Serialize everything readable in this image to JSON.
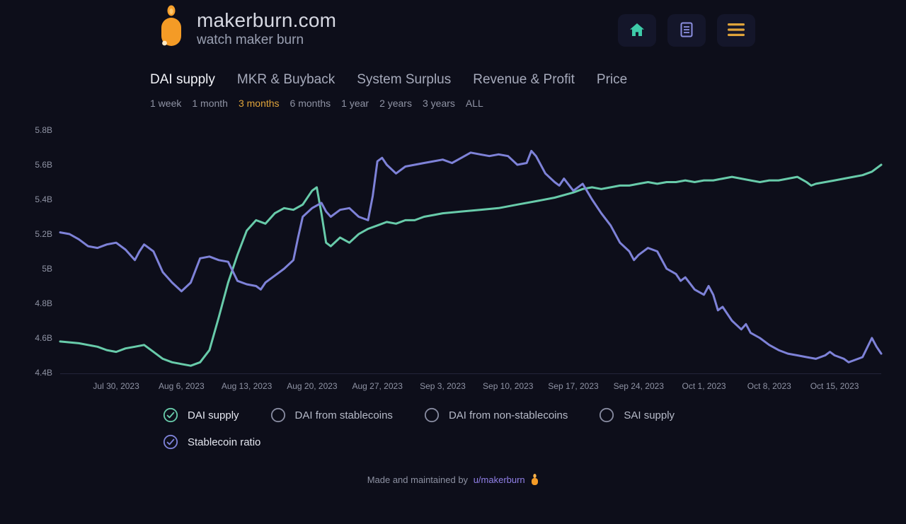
{
  "colors": {
    "background": "#0d0e1a",
    "brand_orange": "#f49b26",
    "accent_orange": "#e0a43a",
    "teal": "#68cbaa",
    "purple": "#7e82d8",
    "home_icon_teal": "#3ecba8",
    "doc_icon_purple": "#8b8fe0"
  },
  "header": {
    "title": "makerburn.com",
    "subtitle": "watch maker burn",
    "icons": [
      "home-icon",
      "document-icon",
      "hamburger-menu-icon"
    ]
  },
  "nav": {
    "tabs": [
      {
        "label": "DAI supply",
        "active": true
      },
      {
        "label": "MKR & Buyback",
        "active": false
      },
      {
        "label": "System Surplus",
        "active": false
      },
      {
        "label": "Revenue & Profit",
        "active": false
      },
      {
        "label": "Price",
        "active": false
      }
    ]
  },
  "timeframes": {
    "options": [
      {
        "label": "1 week",
        "active": false
      },
      {
        "label": "1 month",
        "active": false
      },
      {
        "label": "3 months",
        "active": true
      },
      {
        "label": "6 months",
        "active": false
      },
      {
        "label": "1 year",
        "active": false
      },
      {
        "label": "2 years",
        "active": false
      },
      {
        "label": "3 years",
        "active": false
      },
      {
        "label": "ALL",
        "active": false
      }
    ]
  },
  "chart_data": {
    "type": "line",
    "title": "",
    "y_unit": "B",
    "ylim": [
      4.4,
      5.8
    ],
    "y_ticks": [
      "5.8B",
      "5.6B",
      "5.4B",
      "5.2B",
      "5B",
      "4.8B",
      "4.6B",
      "4.4B"
    ],
    "y_tick_values": [
      5.8,
      5.6,
      5.4,
      5.2,
      5.0,
      4.8,
      4.6,
      4.4
    ],
    "x_ticks": [
      "Jul 30, 2023",
      "Aug 6, 2023",
      "Aug 13, 2023",
      "Aug 20, 2023",
      "Aug 27, 2023",
      "Sep 3, 2023",
      "Sep 10, 2023",
      "Sep 17, 2023",
      "Sep 24, 2023",
      "Oct 1, 2023",
      "Oct 8, 2023",
      "Oct 15, 2023"
    ],
    "x_tick_days": [
      6,
      13,
      20,
      27,
      34,
      41,
      48,
      55,
      62,
      69,
      76,
      83
    ],
    "x_range_days": [
      0,
      88
    ],
    "grid": false,
    "legend_position": "bottom",
    "legend": [
      "DAI supply",
      "Stablecoin ratio"
    ],
    "series": [
      {
        "name": "DAI supply",
        "color": "#68cbaa",
        "points": [
          [
            0,
            4.58
          ],
          [
            2,
            4.57
          ],
          [
            4,
            4.55
          ],
          [
            5,
            4.53
          ],
          [
            6,
            4.52
          ],
          [
            7,
            4.54
          ],
          [
            8,
            4.55
          ],
          [
            9,
            4.56
          ],
          [
            10,
            4.52
          ],
          [
            11,
            4.48
          ],
          [
            12,
            4.46
          ],
          [
            13,
            4.45
          ],
          [
            14,
            4.44
          ],
          [
            15,
            4.46
          ],
          [
            16,
            4.53
          ],
          [
            17,
            4.72
          ],
          [
            18,
            4.92
          ],
          [
            19,
            5.08
          ],
          [
            20,
            5.22
          ],
          [
            21,
            5.28
          ],
          [
            22,
            5.26
          ],
          [
            23,
            5.32
          ],
          [
            24,
            5.35
          ],
          [
            25,
            5.34
          ],
          [
            26,
            5.37
          ],
          [
            27,
            5.45
          ],
          [
            27.5,
            5.47
          ],
          [
            28,
            5.32
          ],
          [
            28.5,
            5.15
          ],
          [
            29,
            5.13
          ],
          [
            30,
            5.18
          ],
          [
            31,
            5.15
          ],
          [
            32,
            5.2
          ],
          [
            33,
            5.23
          ],
          [
            34,
            5.25
          ],
          [
            35,
            5.27
          ],
          [
            36,
            5.26
          ],
          [
            37,
            5.28
          ],
          [
            38,
            5.28
          ],
          [
            39,
            5.3
          ],
          [
            40,
            5.31
          ],
          [
            41,
            5.32
          ],
          [
            43,
            5.33
          ],
          [
            45,
            5.34
          ],
          [
            47,
            5.35
          ],
          [
            49,
            5.37
          ],
          [
            51,
            5.39
          ],
          [
            53,
            5.41
          ],
          [
            55,
            5.44
          ],
          [
            56,
            5.46
          ],
          [
            57,
            5.47
          ],
          [
            58,
            5.46
          ],
          [
            59,
            5.47
          ],
          [
            60,
            5.48
          ],
          [
            61,
            5.48
          ],
          [
            62,
            5.49
          ],
          [
            63,
            5.5
          ],
          [
            64,
            5.49
          ],
          [
            65,
            5.5
          ],
          [
            66,
            5.5
          ],
          [
            67,
            5.51
          ],
          [
            68,
            5.5
          ],
          [
            69,
            5.51
          ],
          [
            70,
            5.51
          ],
          [
            71,
            5.52
          ],
          [
            72,
            5.53
          ],
          [
            73,
            5.52
          ],
          [
            74,
            5.51
          ],
          [
            75,
            5.5
          ],
          [
            76,
            5.51
          ],
          [
            77,
            5.51
          ],
          [
            78,
            5.52
          ],
          [
            79,
            5.53
          ],
          [
            80,
            5.5
          ],
          [
            80.5,
            5.48
          ],
          [
            81,
            5.49
          ],
          [
            82,
            5.5
          ],
          [
            83,
            5.51
          ],
          [
            84,
            5.52
          ],
          [
            85,
            5.53
          ],
          [
            86,
            5.54
          ],
          [
            87,
            5.56
          ],
          [
            88,
            5.6
          ]
        ]
      },
      {
        "name": "Stablecoin ratio",
        "color": "#7e82d8",
        "points": [
          [
            0,
            5.21
          ],
          [
            1,
            5.2
          ],
          [
            2,
            5.17
          ],
          [
            3,
            5.13
          ],
          [
            4,
            5.12
          ],
          [
            5,
            5.14
          ],
          [
            6,
            5.15
          ],
          [
            7,
            5.11
          ],
          [
            8,
            5.05
          ],
          [
            8.5,
            5.1
          ],
          [
            9,
            5.14
          ],
          [
            10,
            5.1
          ],
          [
            11,
            4.98
          ],
          [
            12,
            4.92
          ],
          [
            13,
            4.87
          ],
          [
            14,
            4.92
          ],
          [
            15,
            5.06
          ],
          [
            16,
            5.07
          ],
          [
            17,
            5.05
          ],
          [
            18,
            5.04
          ],
          [
            19,
            4.93
          ],
          [
            20,
            4.91
          ],
          [
            21,
            4.9
          ],
          [
            21.5,
            4.88
          ],
          [
            22,
            4.92
          ],
          [
            23,
            4.96
          ],
          [
            24,
            5.0
          ],
          [
            25,
            5.05
          ],
          [
            25.5,
            5.18
          ],
          [
            26,
            5.3
          ],
          [
            27,
            5.35
          ],
          [
            28,
            5.38
          ],
          [
            28.5,
            5.33
          ],
          [
            29,
            5.3
          ],
          [
            30,
            5.34
          ],
          [
            31,
            5.35
          ],
          [
            32,
            5.3
          ],
          [
            33,
            5.28
          ],
          [
            33.5,
            5.42
          ],
          [
            34,
            5.62
          ],
          [
            34.5,
            5.64
          ],
          [
            35,
            5.6
          ],
          [
            36,
            5.55
          ],
          [
            37,
            5.59
          ],
          [
            38,
            5.6
          ],
          [
            39,
            5.61
          ],
          [
            40,
            5.62
          ],
          [
            41,
            5.63
          ],
          [
            42,
            5.61
          ],
          [
            43,
            5.64
          ],
          [
            44,
            5.67
          ],
          [
            45,
            5.66
          ],
          [
            46,
            5.65
          ],
          [
            47,
            5.66
          ],
          [
            48,
            5.65
          ],
          [
            49,
            5.6
          ],
          [
            50,
            5.61
          ],
          [
            50.5,
            5.68
          ],
          [
            51,
            5.65
          ],
          [
            52,
            5.55
          ],
          [
            53,
            5.5
          ],
          [
            53.5,
            5.48
          ],
          [
            54,
            5.52
          ],
          [
            55,
            5.45
          ],
          [
            55.5,
            5.47
          ],
          [
            56,
            5.49
          ],
          [
            57,
            5.4
          ],
          [
            58,
            5.32
          ],
          [
            59,
            5.25
          ],
          [
            60,
            5.15
          ],
          [
            61,
            5.1
          ],
          [
            61.5,
            5.05
          ],
          [
            62,
            5.08
          ],
          [
            63,
            5.12
          ],
          [
            64,
            5.1
          ],
          [
            65,
            5.0
          ],
          [
            66,
            4.97
          ],
          [
            66.5,
            4.93
          ],
          [
            67,
            4.95
          ],
          [
            68,
            4.88
          ],
          [
            69,
            4.85
          ],
          [
            69.5,
            4.9
          ],
          [
            70,
            4.85
          ],
          [
            70.5,
            4.76
          ],
          [
            71,
            4.78
          ],
          [
            72,
            4.7
          ],
          [
            73,
            4.65
          ],
          [
            73.5,
            4.68
          ],
          [
            74,
            4.63
          ],
          [
            75,
            4.6
          ],
          [
            76,
            4.56
          ],
          [
            77,
            4.53
          ],
          [
            78,
            4.51
          ],
          [
            79,
            4.5
          ],
          [
            80,
            4.49
          ],
          [
            81,
            4.48
          ],
          [
            82,
            4.5
          ],
          [
            82.5,
            4.52
          ],
          [
            83,
            4.5
          ],
          [
            84,
            4.48
          ],
          [
            84.5,
            4.46
          ],
          [
            85,
            4.47
          ],
          [
            86,
            4.49
          ],
          [
            87,
            4.6
          ],
          [
            87.5,
            4.55
          ],
          [
            88,
            4.51
          ]
        ]
      }
    ]
  },
  "legend": {
    "items": [
      {
        "label": "DAI supply",
        "checked": true,
        "color": "#68cbaa"
      },
      {
        "label": "DAI from stablecoins",
        "checked": false,
        "color": "#878ba0"
      },
      {
        "label": "DAI from non-stablecoins",
        "checked": false,
        "color": "#878ba0"
      },
      {
        "label": "SAI supply",
        "checked": false,
        "color": "#878ba0"
      },
      {
        "label": "Stablecoin ratio",
        "checked": true,
        "color": "#7e82d8"
      }
    ]
  },
  "footer": {
    "text": "Made and maintained by",
    "link": "u/makerburn",
    "icon": "candle-icon"
  }
}
